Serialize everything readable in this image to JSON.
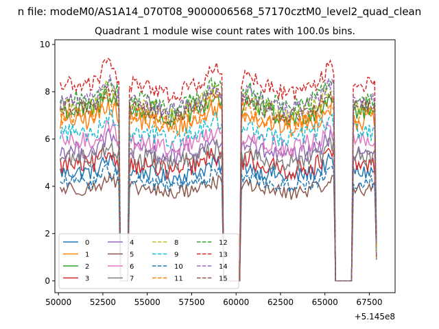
{
  "figure": {
    "suptitle": "n file: modeM0/AS1A14_070T08_9000006568_57170cztM0_level2_quad_clean",
    "title": "Quadrant 1 module wise count rates with 100.0s bins.",
    "offset_text": "+5.145e8"
  },
  "chart_data": {
    "type": "line",
    "title": "Quadrant 1 module wise count rates with 100.0s bins.",
    "xlabel": "",
    "ylabel": "",
    "x_offset": 514500000,
    "xlim": [
      49800,
      68950
    ],
    "ylim": [
      -0.5,
      10.2
    ],
    "xticks": [
      50000,
      52500,
      55000,
      57500,
      60000,
      62500,
      65000,
      67500
    ],
    "xtick_labels": [
      "50000",
      "52500",
      "55000",
      "57500",
      "60000",
      "62500",
      "65000",
      "67500"
    ],
    "yticks": [
      0,
      2,
      4,
      6,
      8,
      10
    ],
    "ytick_labels": [
      "0",
      "2",
      "4",
      "6",
      "8",
      "10"
    ],
    "x_start": 50100,
    "x_step": 100,
    "gaps": [
      [
        53500,
        53900
      ],
      [
        59300,
        60200
      ],
      [
        65600,
        66500
      ]
    ],
    "legend": {
      "location": "lower-left",
      "ncol": 4
    },
    "series": [
      {
        "name": "0",
        "color": "#1f77b4",
        "dash": "solid",
        "base": 4.6,
        "amp": 0.35
      },
      {
        "name": "1",
        "color": "#ff7f0e",
        "dash": "solid",
        "base": 6.8,
        "amp": 0.45
      },
      {
        "name": "2",
        "color": "#2ca02c",
        "dash": "solid",
        "base": 7.2,
        "amp": 0.45
      },
      {
        "name": "3",
        "color": "#d62728",
        "dash": "solid",
        "base": 4.9,
        "amp": 0.4
      },
      {
        "name": "4",
        "color": "#9467bd",
        "dash": "solid",
        "base": 5.5,
        "amp": 0.4
      },
      {
        "name": "5",
        "color": "#8c564b",
        "dash": "solid",
        "base": 3.9,
        "amp": 0.3
      },
      {
        "name": "6",
        "color": "#e377c2",
        "dash": "solid",
        "base": 5.9,
        "amp": 0.4
      },
      {
        "name": "7",
        "color": "#7f7f7f",
        "dash": "solid",
        "base": 5.2,
        "amp": 0.4
      },
      {
        "name": "8",
        "color": "#bcbd22",
        "dash": "dashed",
        "base": 7.4,
        "amp": 0.4
      },
      {
        "name": "9",
        "color": "#17becf",
        "dash": "dashed",
        "base": 6.3,
        "amp": 0.4
      },
      {
        "name": "10",
        "color": "#1f77b4",
        "dash": "dashed",
        "base": 4.2,
        "amp": 0.3
      },
      {
        "name": "11",
        "color": "#ff7f0e",
        "dash": "dashed",
        "base": 7.0,
        "amp": 0.4
      },
      {
        "name": "12",
        "color": "#2ca02c",
        "dash": "dashed",
        "base": 7.7,
        "amp": 0.35
      },
      {
        "name": "13",
        "color": "#d62728",
        "dash": "dashed",
        "base": 8.3,
        "amp": 0.35
      },
      {
        "name": "14",
        "color": "#9467bd",
        "dash": "dashed",
        "base": 7.6,
        "amp": 0.35
      },
      {
        "name": "15",
        "color": "#8c564b",
        "dash": "dashed",
        "base": 7.3,
        "amp": 0.35
      }
    ]
  }
}
